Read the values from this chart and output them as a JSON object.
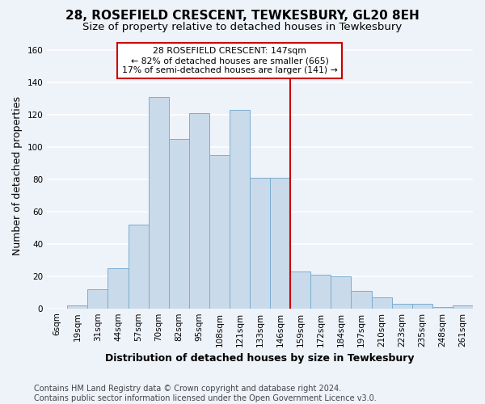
{
  "title": "28, ROSEFIELD CRESCENT, TEWKESBURY, GL20 8EH",
  "subtitle": "Size of property relative to detached houses in Tewkesbury",
  "xlabel": "Distribution of detached houses by size in Tewkesbury",
  "ylabel": "Number of detached properties",
  "categories": [
    "6sqm",
    "19sqm",
    "31sqm",
    "44sqm",
    "57sqm",
    "70sqm",
    "82sqm",
    "95sqm",
    "108sqm",
    "121sqm",
    "133sqm",
    "146sqm",
    "159sqm",
    "172sqm",
    "184sqm",
    "197sqm",
    "210sqm",
    "223sqm",
    "235sqm",
    "248sqm",
    "261sqm"
  ],
  "values": [
    0,
    2,
    12,
    25,
    52,
    131,
    105,
    121,
    95,
    123,
    81,
    81,
    23,
    21,
    20,
    11,
    7,
    3,
    3,
    1,
    2
  ],
  "bar_color": "#c9daea",
  "bar_edge_color": "#7aaed0",
  "marker_index": 11,
  "marker_color": "#cc0000",
  "annotation_line1": "28 ROSEFIELD CRESCENT: 147sqm",
  "annotation_line2": "← 82% of detached houses are smaller (665)",
  "annotation_line3": "17% of semi-detached houses are larger (141) →",
  "annotation_box_color": "#ffffff",
  "annotation_box_edge_color": "#cc0000",
  "ylim": [
    0,
    165
  ],
  "yticks": [
    0,
    20,
    40,
    60,
    80,
    100,
    120,
    140,
    160
  ],
  "footer_text": "Contains HM Land Registry data © Crown copyright and database right 2024.\nContains public sector information licensed under the Open Government Licence v3.0.",
  "bg_color": "#eef2f9",
  "grid_color": "#ffffff",
  "title_fontsize": 11,
  "subtitle_fontsize": 9.5,
  "label_fontsize": 9,
  "tick_fontsize": 7.5,
  "footer_fontsize": 7
}
